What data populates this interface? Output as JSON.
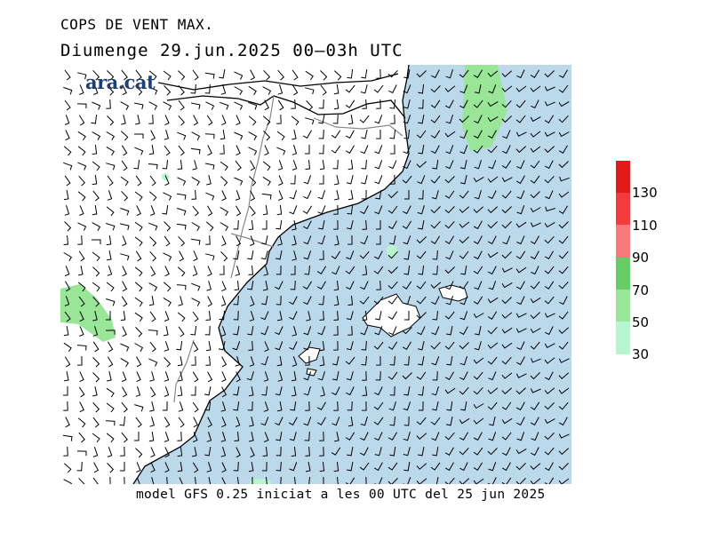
{
  "header": {
    "title": "COPS DE VENT MAX.",
    "subtitle": "Diumenge  29.jun.2025 00–03h UTC"
  },
  "logo": {
    "text": "ara.cat",
    "color": "#1f3f73"
  },
  "footer": {
    "text": "model GFS 0.25 iniciat a les 00 UTC del 25 jun 2025"
  },
  "legend": {
    "labels": [
      "130",
      "110",
      "90",
      "70",
      "50",
      "30"
    ],
    "colors": [
      "#e31a1c",
      "#f03c3c",
      "#f77a7a",
      "#66cc66",
      "#99e699",
      "#b7f5cf"
    ]
  },
  "map_colors": {
    "sea": "#bcd9ec",
    "land": "#ffffff",
    "gust_30_50": "#b7f5cf",
    "gust_50_70": "#99e699"
  }
}
